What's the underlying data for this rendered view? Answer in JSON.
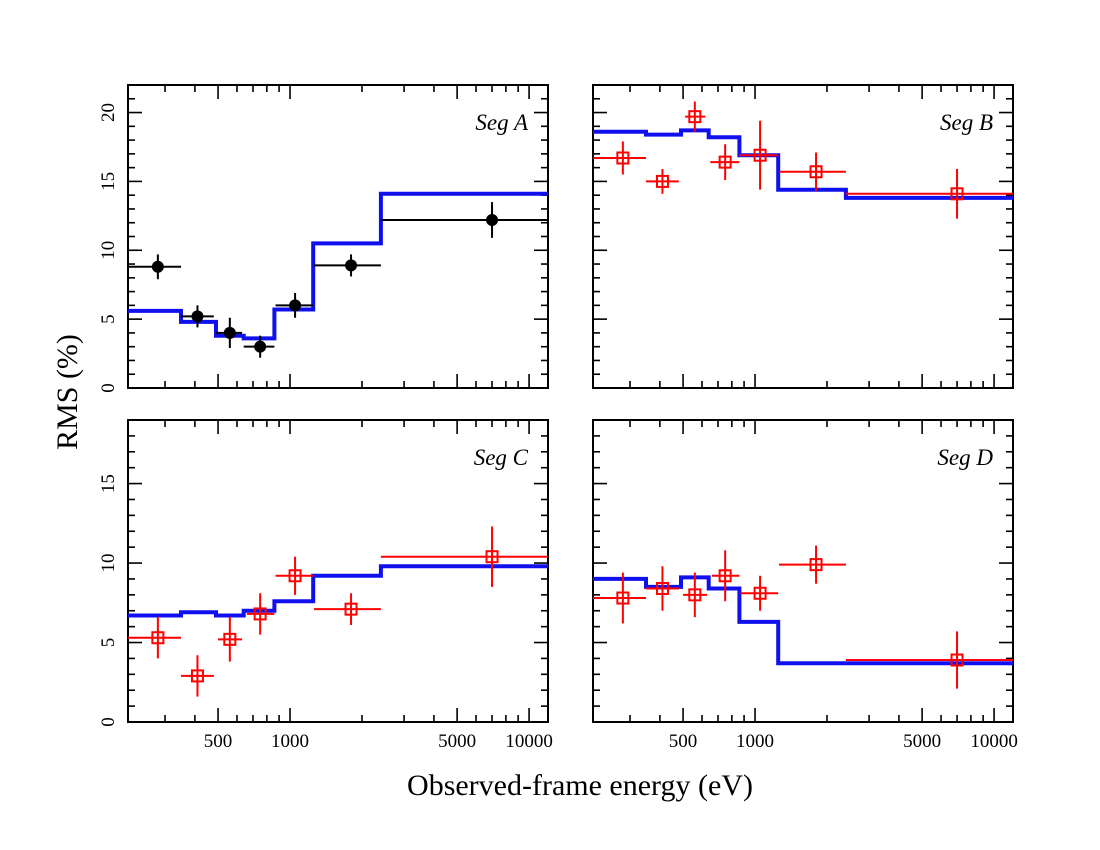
{
  "figure": {
    "ylabel": "RMS (%)",
    "xlabel": "Observed-frame energy  (eV)"
  },
  "colors": {
    "model": "#1010ee",
    "segA_points": "#000000",
    "other_points": "#ff0000",
    "axes": "#000000"
  },
  "chart_data": [
    {
      "type": "scatter",
      "label": "Seg A",
      "marker": "filled-circle",
      "xscale": "log",
      "xlim": [
        210,
        12000
      ],
      "ylim": [
        0,
        22
      ],
      "yticks": [
        0,
        5,
        10,
        15,
        20
      ],
      "xticks": [
        500,
        1000,
        5000,
        10000
      ],
      "points": [
        {
          "x": 280,
          "xlo": 210,
          "xhi": 350,
          "y": 8.8,
          "yerr": 0.9
        },
        {
          "x": 410,
          "xlo": 350,
          "xhi": 480,
          "y": 5.2,
          "yerr": 0.8
        },
        {
          "x": 560,
          "xlo": 490,
          "xhi": 630,
          "y": 4.0,
          "yerr": 1.1
        },
        {
          "x": 750,
          "xlo": 640,
          "xhi": 860,
          "y": 3.0,
          "yerr": 0.8
        },
        {
          "x": 1050,
          "xlo": 870,
          "xhi": 1250,
          "y": 6.0,
          "yerr": 0.9
        },
        {
          "x": 1800,
          "xlo": 1260,
          "xhi": 2400,
          "y": 8.9,
          "yerr": 0.8
        },
        {
          "x": 7000,
          "xlo": 2400,
          "xhi": 12000,
          "y": 12.2,
          "yerr": 1.3
        }
      ],
      "model": {
        "edges": [
          210,
          350,
          490,
          640,
          860,
          1250,
          2400,
          12000
        ],
        "values": [
          5.6,
          4.8,
          3.8,
          3.6,
          5.7,
          10.5,
          14.1
        ]
      }
    },
    {
      "type": "scatter",
      "label": "Seg B",
      "marker": "open-square",
      "xscale": "log",
      "xlim": [
        210,
        12000
      ],
      "ylim": [
        0,
        22
      ],
      "yticks": [
        0,
        5,
        10,
        15,
        20
      ],
      "xticks": [
        500,
        1000,
        5000,
        10000
      ],
      "points": [
        {
          "x": 280,
          "xlo": 210,
          "xhi": 350,
          "y": 16.7,
          "yerr": 1.2
        },
        {
          "x": 410,
          "xlo": 350,
          "xhi": 480,
          "y": 15.0,
          "yerr": 0.9
        },
        {
          "x": 560,
          "xlo": 510,
          "xhi": 620,
          "y": 19.7,
          "yerr": 1.1
        },
        {
          "x": 750,
          "xlo": 650,
          "xhi": 860,
          "y": 16.4,
          "yerr": 1.3
        },
        {
          "x": 1050,
          "xlo": 860,
          "xhi": 1250,
          "y": 16.9,
          "yerr": 2.5
        },
        {
          "x": 1800,
          "xlo": 1260,
          "xhi": 2400,
          "y": 15.7,
          "yerr": 1.4
        },
        {
          "x": 7000,
          "xlo": 2400,
          "xhi": 12000,
          "y": 14.1,
          "yerr": 1.8
        }
      ],
      "model": {
        "edges": [
          210,
          350,
          490,
          640,
          860,
          1250,
          2400,
          12000
        ],
        "values": [
          18.6,
          18.4,
          18.7,
          18.2,
          16.9,
          14.4,
          13.8
        ]
      }
    },
    {
      "type": "scatter",
      "label": "Seg C",
      "marker": "open-square",
      "xscale": "log",
      "xlim": [
        210,
        12000
      ],
      "ylim": [
        0,
        19
      ],
      "yticks": [
        0,
        5,
        10,
        15
      ],
      "xticks": [
        500,
        1000,
        5000,
        10000
      ],
      "xticklabels": [
        "500",
        "1000",
        "5000",
        "10000"
      ],
      "points": [
        {
          "x": 280,
          "xlo": 210,
          "xhi": 350,
          "y": 5.3,
          "yerr": 1.3
        },
        {
          "x": 410,
          "xlo": 350,
          "xhi": 480,
          "y": 2.9,
          "yerr": 1.3
        },
        {
          "x": 560,
          "xlo": 500,
          "xhi": 630,
          "y": 5.2,
          "yerr": 1.4
        },
        {
          "x": 750,
          "xlo": 660,
          "xhi": 860,
          "y": 6.8,
          "yerr": 1.3
        },
        {
          "x": 1050,
          "xlo": 870,
          "xhi": 1250,
          "y": 9.2,
          "yerr": 1.2
        },
        {
          "x": 1800,
          "xlo": 1260,
          "xhi": 2400,
          "y": 7.1,
          "yerr": 1.0
        },
        {
          "x": 7000,
          "xlo": 2400,
          "xhi": 12000,
          "y": 10.4,
          "yerr": 1.9
        }
      ],
      "model": {
        "edges": [
          210,
          350,
          490,
          640,
          860,
          1250,
          2400,
          12000
        ],
        "values": [
          6.7,
          6.9,
          6.7,
          7.0,
          7.6,
          9.2,
          9.8
        ]
      }
    },
    {
      "type": "scatter",
      "label": "Seg D",
      "marker": "open-square",
      "xscale": "log",
      "xlim": [
        210,
        12000
      ],
      "ylim": [
        0,
        19
      ],
      "yticks": [
        0,
        5,
        10,
        15
      ],
      "xticks": [
        500,
        1000,
        5000,
        10000
      ],
      "xticklabels": [
        "500",
        "1000",
        "5000",
        "10000"
      ],
      "points": [
        {
          "x": 280,
          "xlo": 210,
          "xhi": 350,
          "y": 7.8,
          "yerr": 1.6
        },
        {
          "x": 410,
          "xlo": 350,
          "xhi": 480,
          "y": 8.4,
          "yerr": 1.4
        },
        {
          "x": 560,
          "xlo": 500,
          "xhi": 630,
          "y": 8.0,
          "yerr": 1.4
        },
        {
          "x": 750,
          "xlo": 660,
          "xhi": 860,
          "y": 9.2,
          "yerr": 1.6
        },
        {
          "x": 1050,
          "xlo": 870,
          "xhi": 1250,
          "y": 8.1,
          "yerr": 1.1
        },
        {
          "x": 1800,
          "xlo": 1260,
          "xhi": 2400,
          "y": 9.9,
          "yerr": 1.2
        },
        {
          "x": 7000,
          "xlo": 2400,
          "xhi": 12000,
          "y": 3.9,
          "yerr": 1.8
        }
      ],
      "model": {
        "edges": [
          210,
          350,
          490,
          640,
          860,
          1250,
          2400,
          12000
        ],
        "values": [
          9.0,
          8.5,
          9.1,
          8.4,
          6.3,
          3.7,
          3.7
        ]
      }
    }
  ]
}
